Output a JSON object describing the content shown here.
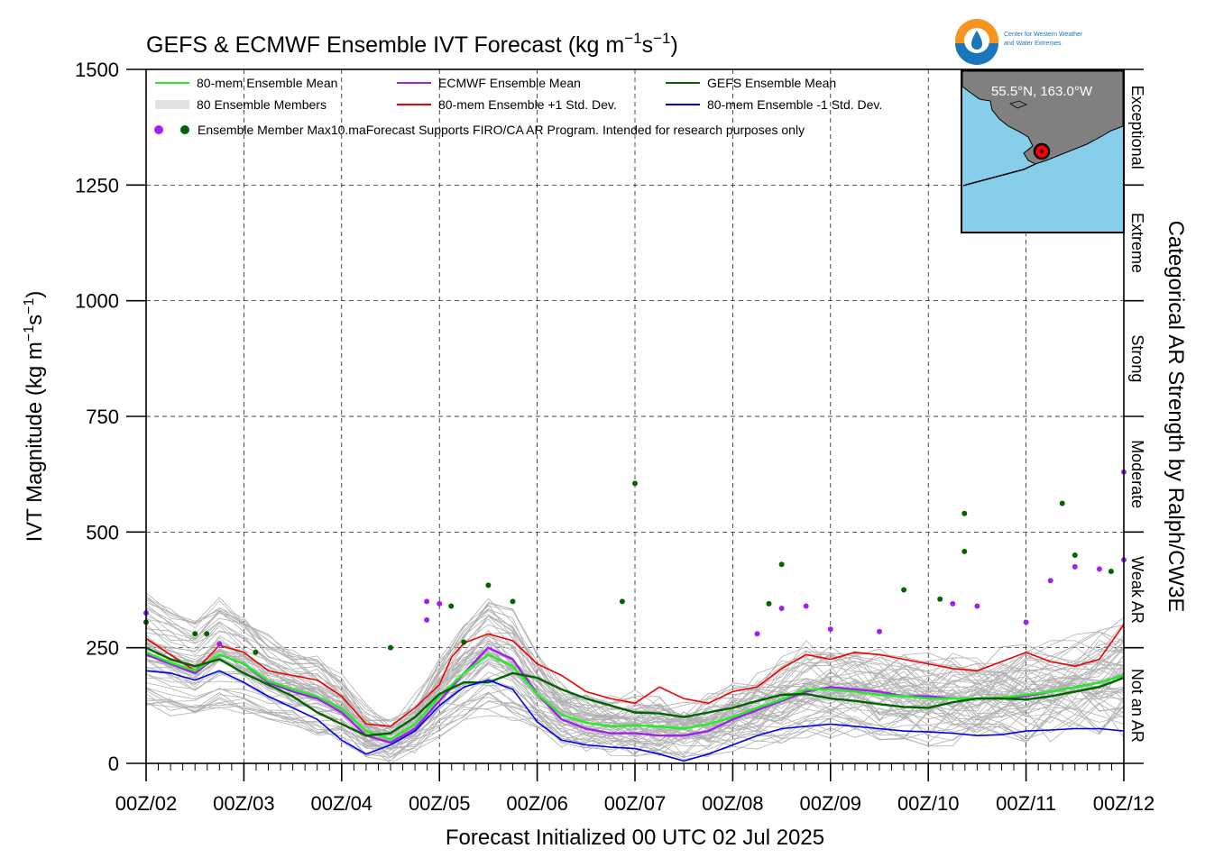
{
  "title": "GEFS & ECMWF Ensemble IVT Forecast (kg m",
  "title_sup1": "−1",
  "title_mid": "s",
  "title_sup2": "−1",
  "title_end": ")",
  "logo": {
    "line1": "Center for Western Weather",
    "line2": "and Water Extremes"
  },
  "inset_map": {
    "label": "55.5°N, 163.0°W",
    "ocean_color": "#87CEEB",
    "land_color": "#808080",
    "marker_color": "#ff0000"
  },
  "chart_data": {
    "type": "line",
    "title": "GEFS & ECMWF Ensemble IVT Forecast (kg m⁻¹s⁻¹)",
    "xlabel": "Forecast Initialized 00 UTC 02 Jul 2025",
    "ylabel": "IVT Magnitude (kg m⁻¹s⁻¹)",
    "ylabel_parts": [
      "IVT Magnitude (kg m",
      "−1",
      "s",
      "−1",
      ")"
    ],
    "right_label": "Categorical AR Strength by Ralph/CW3E",
    "x_unit": "days since 00Z/02",
    "xlim": [
      0,
      10
    ],
    "ylim": [
      0,
      1500
    ],
    "grid": true,
    "x_tick_labels": [
      "00Z/02",
      "00Z/03",
      "00Z/04",
      "00Z/05",
      "00Z/06",
      "00Z/07",
      "00Z/08",
      "00Z/09",
      "00Z/10",
      "00Z/11",
      "00Z/12"
    ],
    "y_ticks": [
      0,
      250,
      500,
      750,
      1000,
      1250,
      1500
    ],
    "ar_categories": [
      {
        "label": "Not an AR",
        "range": [
          0,
          250
        ]
      },
      {
        "label": "Weak AR",
        "range": [
          250,
          500
        ]
      },
      {
        "label": "Moderate",
        "range": [
          500,
          750
        ]
      },
      {
        "label": "Strong",
        "range": [
          750,
          1000
        ]
      },
      {
        "label": "Extreme",
        "range": [
          1000,
          1250
        ]
      },
      {
        "label": "Exceptional",
        "range": [
          1250,
          1500
        ]
      }
    ],
    "legend": [
      {
        "label": "80-mem Ensemble Mean",
        "color": "#22ee22",
        "kind": "line"
      },
      {
        "label": "ECMWF Ensemble Mean",
        "color": "#a020f0",
        "kind": "line"
      },
      {
        "label": "GEFS Ensemble Mean",
        "color": "#006400",
        "kind": "line"
      },
      {
        "label": "80 Ensemble Members",
        "color": "#b0b0b0",
        "kind": "multiline"
      },
      {
        "label": "80-mem Ensemble +1 Std. Dev.",
        "color": "#ee0000",
        "kind": "line"
      },
      {
        "label": "80-mem Ensemble -1 Std. Dev.",
        "color": "#0000ee",
        "kind": "line"
      },
      {
        "label": "Ensemble Member Max",
        "color": "#a020f0",
        "kind": "dots"
      }
    ],
    "disclaimer": "10.maForecast Supports FIRO/CA AR Program. Intended for research purposes only",
    "series": [
      {
        "name": "80-mem Ensemble +1 Std. Dev.",
        "color": "#ee0000",
        "x": [
          0,
          0.25,
          0.5,
          0.75,
          1,
          1.25,
          1.5,
          1.75,
          2,
          2.25,
          2.5,
          2.75,
          3,
          3.125,
          3.25,
          3.5,
          3.75,
          4,
          4.25,
          4.5,
          4.75,
          5,
          5.25,
          5.5,
          5.75,
          6,
          6.25,
          6.5,
          6.75,
          7,
          7.25,
          7.5,
          7.75,
          8,
          8.25,
          8.5,
          8.75,
          9,
          9.25,
          9.5,
          9.75,
          10
        ],
        "y": [
          270,
          235,
          200,
          255,
          240,
          200,
          190,
          180,
          145,
          85,
          80,
          120,
          170,
          230,
          260,
          280,
          265,
          215,
          190,
          155,
          140,
          130,
          165,
          140,
          130,
          155,
          165,
          205,
          235,
          225,
          240,
          235,
          225,
          215,
          205,
          200,
          220,
          240,
          220,
          210,
          225,
          300
        ]
      },
      {
        "name": "ECMWF Ensemble Mean",
        "color": "#a020f0",
        "x": [
          0,
          0.25,
          0.5,
          0.75,
          1,
          1.25,
          1.5,
          1.75,
          2,
          2.25,
          2.5,
          2.75,
          3,
          3.25,
          3.5,
          3.75,
          4,
          4.25,
          4.5,
          4.75,
          5,
          5.25,
          5.5,
          5.75,
          6,
          6.25,
          6.5,
          6.75,
          7,
          7.25,
          7.5,
          7.75,
          8,
          8.25,
          8.5,
          8.75,
          9,
          9.25,
          9.5,
          9.75,
          10
        ],
        "y": [
          235,
          215,
          195,
          235,
          215,
          175,
          155,
          140,
          110,
          60,
          45,
          75,
          135,
          195,
          250,
          225,
          150,
          95,
          75,
          65,
          65,
          60,
          60,
          70,
          95,
          115,
          135,
          155,
          165,
          160,
          155,
          145,
          145,
          140,
          140,
          140,
          145,
          155,
          165,
          175,
          190
        ]
      },
      {
        "name": "80-mem Ensemble Mean",
        "color": "#22ee22",
        "x": [
          0,
          0.25,
          0.5,
          0.75,
          1,
          1.25,
          1.5,
          1.75,
          2,
          2.25,
          2.5,
          2.75,
          3,
          3.25,
          3.5,
          3.75,
          4,
          4.25,
          4.5,
          4.75,
          5,
          5.25,
          5.5,
          5.75,
          6,
          6.25,
          6.5,
          6.75,
          7,
          7.25,
          7.5,
          7.75,
          8,
          8.25,
          8.5,
          8.75,
          9,
          9.25,
          9.5,
          9.75,
          10
        ],
        "y": [
          240,
          218,
          200,
          235,
          215,
          178,
          160,
          145,
          118,
          70,
          52,
          85,
          145,
          195,
          235,
          210,
          150,
          105,
          88,
          80,
          82,
          80,
          75,
          85,
          100,
          120,
          138,
          160,
          160,
          155,
          148,
          145,
          140,
          140,
          140,
          142,
          148,
          155,
          165,
          175,
          190
        ]
      },
      {
        "name": "GEFS Ensemble Mean",
        "color": "#006400",
        "x": [
          0,
          0.25,
          0.5,
          0.75,
          1,
          1.25,
          1.5,
          1.75,
          2,
          2.25,
          2.5,
          2.75,
          3,
          3.25,
          3.5,
          3.75,
          4,
          4.25,
          4.5,
          4.75,
          5,
          5.25,
          5.5,
          5.75,
          6,
          6.25,
          6.5,
          6.75,
          7,
          7.25,
          7.5,
          7.75,
          8,
          8.25,
          8.5,
          8.75,
          9,
          9.25,
          9.5,
          9.75,
          10
        ],
        "y": [
          250,
          225,
          210,
          225,
          195,
          170,
          145,
          110,
          85,
          60,
          65,
          100,
          150,
          175,
          175,
          195,
          185,
          160,
          140,
          125,
          110,
          108,
          100,
          110,
          120,
          135,
          148,
          150,
          140,
          135,
          128,
          122,
          120,
          132,
          140,
          140,
          138,
          145,
          155,
          165,
          185
        ]
      },
      {
        "name": "80-mem Ensemble -1 Std. Dev.",
        "color": "#0000ee",
        "x": [
          0,
          0.25,
          0.5,
          0.75,
          1,
          1.25,
          1.5,
          1.75,
          2,
          2.25,
          2.5,
          2.75,
          3,
          3.25,
          3.5,
          3.75,
          4,
          4.25,
          4.5,
          4.75,
          5,
          5.25,
          5.5,
          5.75,
          6,
          6.25,
          6.5,
          6.75,
          7,
          7.25,
          7.5,
          7.75,
          8,
          8.25,
          8.5,
          8.75,
          9,
          9.25,
          9.5,
          9.75,
          10
        ],
        "y": [
          200,
          195,
          180,
          200,
          175,
          145,
          120,
          95,
          50,
          20,
          40,
          70,
          125,
          165,
          180,
          160,
          90,
          50,
          40,
          35,
          32,
          20,
          5,
          20,
          40,
          60,
          75,
          80,
          85,
          80,
          75,
          70,
          68,
          65,
          60,
          62,
          70,
          72,
          75,
          75,
          70
        ]
      }
    ],
    "max_points": [
      {
        "x": 0.0,
        "y": 325,
        "model": "ECMWF"
      },
      {
        "x": 0.0,
        "y": 305,
        "model": "GEFS"
      },
      {
        "x": 0.5,
        "y": 280,
        "model": "GEFS"
      },
      {
        "x": 0.62,
        "y": 280,
        "model": "GEFS"
      },
      {
        "x": 0.75,
        "y": 258,
        "model": "ECMWF"
      },
      {
        "x": 1.12,
        "y": 240,
        "model": "GEFS"
      },
      {
        "x": 2.5,
        "y": 250,
        "model": "GEFS"
      },
      {
        "x": 2.87,
        "y": 350,
        "model": "ECMWF"
      },
      {
        "x": 2.87,
        "y": 310,
        "model": "ECMWF"
      },
      {
        "x": 3.0,
        "y": 345,
        "model": "ECMWF"
      },
      {
        "x": 3.12,
        "y": 340,
        "model": "GEFS"
      },
      {
        "x": 3.25,
        "y": 262,
        "model": "GEFS"
      },
      {
        "x": 3.5,
        "y": 385,
        "model": "GEFS"
      },
      {
        "x": 3.75,
        "y": 350,
        "model": "GEFS"
      },
      {
        "x": 4.87,
        "y": 350,
        "model": "GEFS"
      },
      {
        "x": 5.0,
        "y": 605,
        "model": "GEFS"
      },
      {
        "x": 6.25,
        "y": 280,
        "model": "ECMWF"
      },
      {
        "x": 6.37,
        "y": 345,
        "model": "GEFS"
      },
      {
        "x": 6.5,
        "y": 430,
        "model": "GEFS"
      },
      {
        "x": 6.5,
        "y": 335,
        "model": "ECMWF"
      },
      {
        "x": 6.75,
        "y": 340,
        "model": "ECMWF"
      },
      {
        "x": 7.0,
        "y": 290,
        "model": "ECMWF"
      },
      {
        "x": 7.5,
        "y": 285,
        "model": "ECMWF"
      },
      {
        "x": 7.75,
        "y": 375,
        "model": "GEFS"
      },
      {
        "x": 8.12,
        "y": 355,
        "model": "GEFS"
      },
      {
        "x": 8.25,
        "y": 345,
        "model": "ECMWF"
      },
      {
        "x": 8.37,
        "y": 540,
        "model": "GEFS"
      },
      {
        "x": 8.37,
        "y": 458,
        "model": "GEFS"
      },
      {
        "x": 8.5,
        "y": 340,
        "model": "ECMWF"
      },
      {
        "x": 9.0,
        "y": 305,
        "model": "ECMWF"
      },
      {
        "x": 9.25,
        "y": 395,
        "model": "ECMWF"
      },
      {
        "x": 9.37,
        "y": 562,
        "model": "GEFS"
      },
      {
        "x": 9.5,
        "y": 450,
        "model": "GEFS"
      },
      {
        "x": 9.5,
        "y": 425,
        "model": "ECMWF"
      },
      {
        "x": 9.75,
        "y": 420,
        "model": "ECMWF"
      },
      {
        "x": 9.87,
        "y": 415,
        "model": "GEFS"
      },
      {
        "x": 10.0,
        "y": 630,
        "model": "ECMWF"
      },
      {
        "x": 10.0,
        "y": 440,
        "model": "ECMWF"
      }
    ]
  }
}
